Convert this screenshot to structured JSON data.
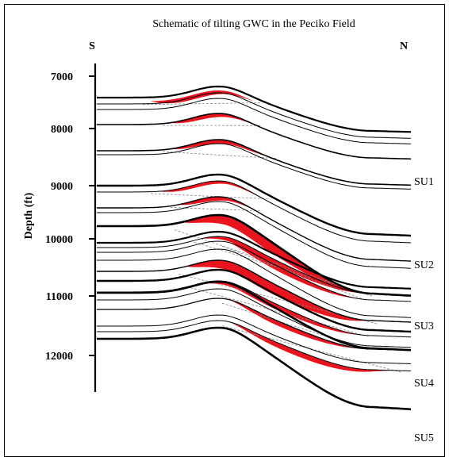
{
  "title": "Schematic of tilting GWC in the Peciko Field",
  "direction": {
    "left": "S",
    "right": "N"
  },
  "axis": {
    "label": "Depth (ft)",
    "ticks": [
      "7000",
      "8000",
      "9000",
      "10000",
      "11000",
      "12000"
    ]
  },
  "units": [
    "SU1",
    "SU2",
    "SU3",
    "SU4",
    "SU5"
  ],
  "colors": {
    "gas": "#e8141e",
    "lines": "#000000",
    "contact": "#888888"
  }
}
